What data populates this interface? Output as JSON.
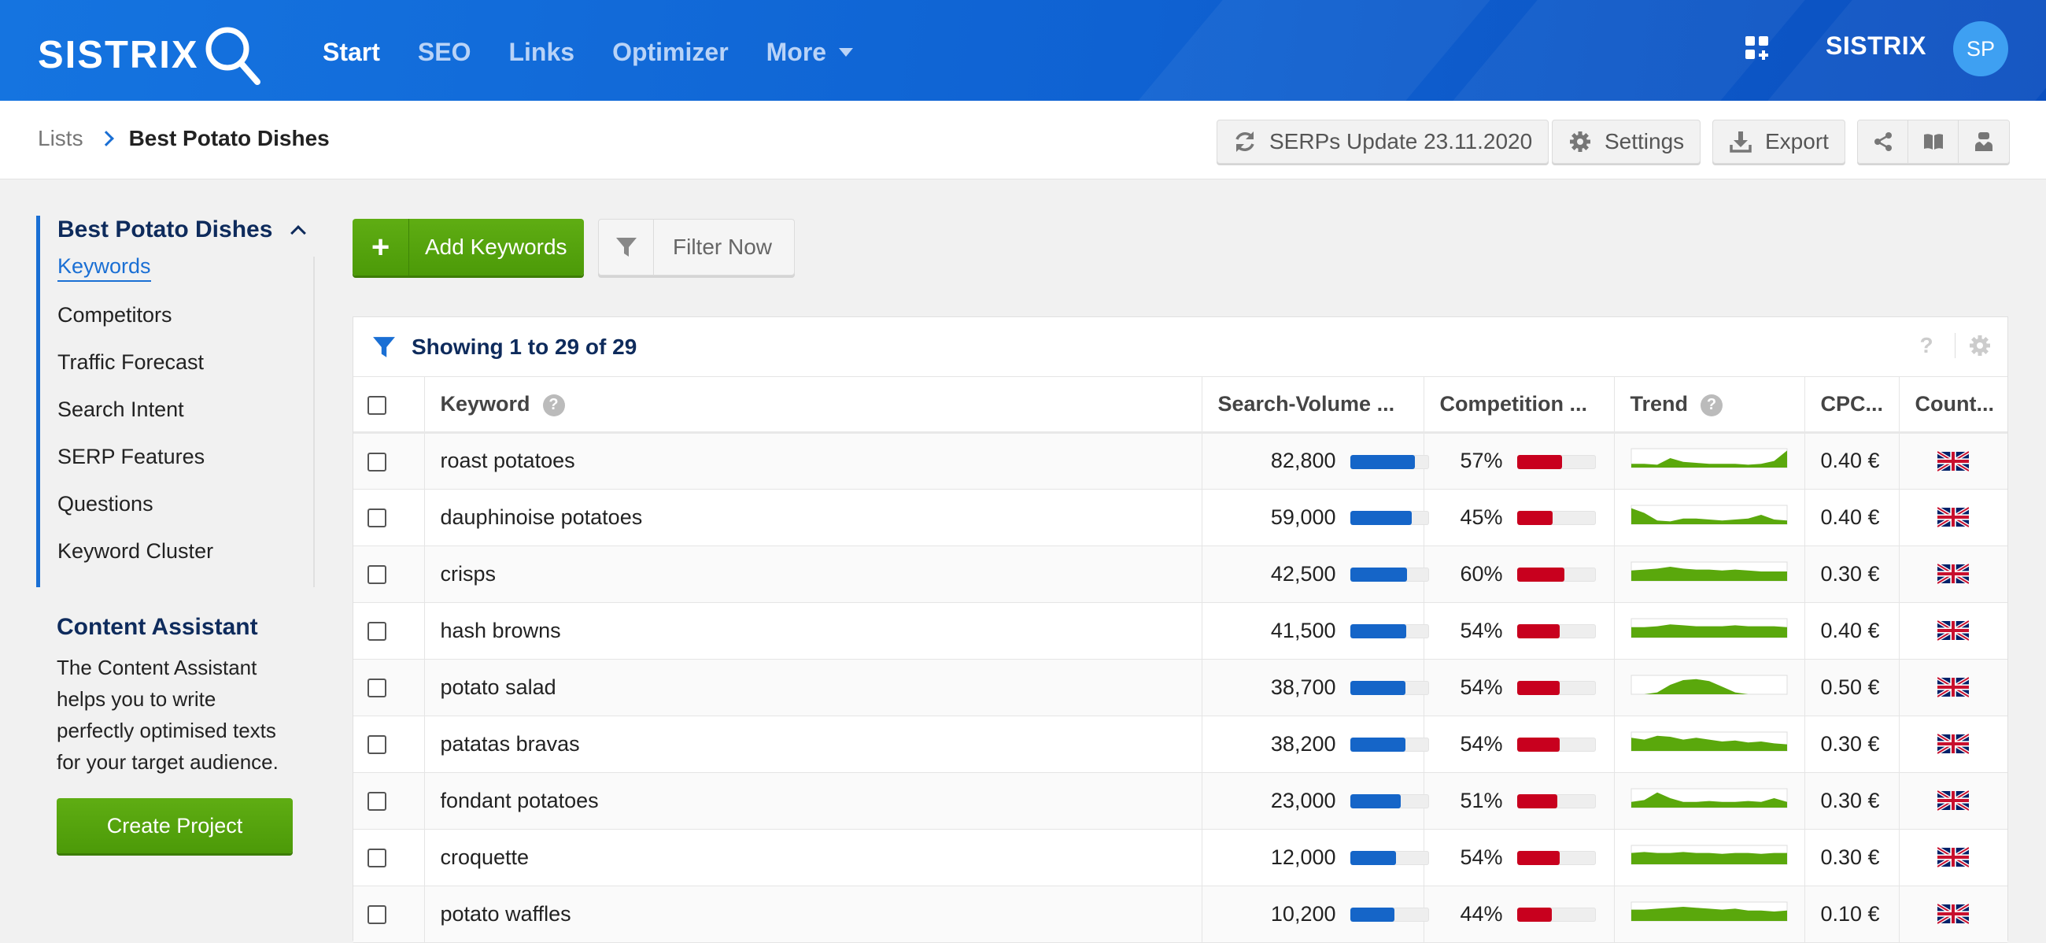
{
  "topbar": {
    "logo": "SISTRIX",
    "nav": [
      {
        "label": "Start",
        "active": true
      },
      {
        "label": "SEO",
        "active": false
      },
      {
        "label": "Links",
        "active": false
      },
      {
        "label": "Optimizer",
        "active": false
      },
      {
        "label": "More",
        "active": false,
        "dropdown": true
      }
    ],
    "apps_icon": "apps-grid-icon",
    "brand": "SISTRIX",
    "avatar": "SP"
  },
  "breadcrumb": {
    "root": "Lists",
    "current": "Best Potato Dishes"
  },
  "header_actions": {
    "serps_update": "SERPs Update 23.11.2020",
    "settings": "Settings",
    "export": "Export",
    "icons": [
      "share-icon",
      "book-icon",
      "user-tie-icon"
    ]
  },
  "sidebar": {
    "title": "Best Potato Dishes",
    "items": [
      {
        "label": "Keywords",
        "active": true
      },
      {
        "label": "Competitors",
        "active": false
      },
      {
        "label": "Traffic Forecast",
        "active": false
      },
      {
        "label": "Search Intent",
        "active": false
      },
      {
        "label": "SERP Features",
        "active": false
      },
      {
        "label": "Questions",
        "active": false
      },
      {
        "label": "Keyword Cluster",
        "active": false
      }
    ],
    "content_assistant": {
      "title": "Content Assistant",
      "text": "The Content Assistant helps you to write perfectly optimised texts for your target audience.",
      "button": "Create Project"
    }
  },
  "actions": {
    "add_keywords": "Add Keywords",
    "filter_now": "Filter Now"
  },
  "table": {
    "showing": "Showing 1 to 29 of 29",
    "help": "?",
    "columns": {
      "keyword": "Keyword",
      "search_volume": "Search-Volume ...",
      "competition": "Competition ...",
      "trend": "Trend",
      "cpc": "CPC...",
      "country": "Count..."
    },
    "colors": {
      "volume": "#1565c8",
      "competition": "#c8001e",
      "trend": "#5aa80c"
    },
    "rows": [
      {
        "keyword": "roast potatoes",
        "volume": "82,800",
        "volume_level": 0.82,
        "competition": "57%",
        "competition_level": 0.57,
        "cpc": "0.40 €",
        "trend": [
          0.2,
          0.2,
          0.15,
          0.5,
          0.3,
          0.25,
          0.2,
          0.2,
          0.2,
          0.15,
          0.2,
          0.35,
          0.9
        ]
      },
      {
        "keyword": "dauphinoise potatoes",
        "volume": "59,000",
        "volume_level": 0.78,
        "competition": "45%",
        "competition_level": 0.45,
        "cpc": "0.40 €",
        "trend": [
          0.85,
          0.6,
          0.2,
          0.15,
          0.3,
          0.3,
          0.25,
          0.2,
          0.25,
          0.3,
          0.5,
          0.25,
          0.2
        ]
      },
      {
        "keyword": "crisps",
        "volume": "42,500",
        "volume_level": 0.72,
        "competition": "60%",
        "competition_level": 0.6,
        "cpc": "0.30 €",
        "trend": [
          0.55,
          0.6,
          0.65,
          0.75,
          0.65,
          0.6,
          0.6,
          0.55,
          0.6,
          0.55,
          0.5,
          0.5,
          0.5
        ]
      },
      {
        "keyword": "hash browns",
        "volume": "41,500",
        "volume_level": 0.71,
        "competition": "54%",
        "competition_level": 0.54,
        "cpc": "0.40 €",
        "trend": [
          0.55,
          0.55,
          0.6,
          0.7,
          0.65,
          0.6,
          0.6,
          0.6,
          0.65,
          0.6,
          0.6,
          0.6,
          0.55
        ]
      },
      {
        "keyword": "potato salad",
        "volume": "38,700",
        "volume_level": 0.7,
        "competition": "54%",
        "competition_level": 0.54,
        "cpc": "0.50 €",
        "trend": [
          0.0,
          0.0,
          0.1,
          0.5,
          0.75,
          0.8,
          0.7,
          0.4,
          0.1,
          0.0,
          0.0,
          0.0,
          0.0
        ]
      },
      {
        "keyword": "patatas bravas",
        "volume": "38,200",
        "volume_level": 0.7,
        "competition": "54%",
        "competition_level": 0.54,
        "cpc": "0.30 €",
        "trend": [
          0.7,
          0.6,
          0.8,
          0.75,
          0.6,
          0.7,
          0.6,
          0.5,
          0.55,
          0.45,
          0.5,
          0.4,
          0.35
        ]
      },
      {
        "keyword": "fondant potatoes",
        "volume": "23,000",
        "volume_level": 0.64,
        "competition": "51%",
        "competition_level": 0.51,
        "cpc": "0.30 €",
        "trend": [
          0.3,
          0.4,
          0.8,
          0.5,
          0.3,
          0.3,
          0.35,
          0.3,
          0.3,
          0.35,
          0.3,
          0.5,
          0.3
        ]
      },
      {
        "keyword": "croquette",
        "volume": "12,000",
        "volume_level": 0.58,
        "competition": "54%",
        "competition_level": 0.54,
        "cpc": "0.30 €",
        "trend": [
          0.6,
          0.65,
          0.6,
          0.6,
          0.65,
          0.6,
          0.6,
          0.55,
          0.6,
          0.6,
          0.55,
          0.6,
          0.6
        ]
      },
      {
        "keyword": "potato waffles",
        "volume": "10,200",
        "volume_level": 0.56,
        "competition": "44%",
        "competition_level": 0.44,
        "cpc": "0.10 €",
        "trend": [
          0.6,
          0.6,
          0.65,
          0.7,
          0.75,
          0.7,
          0.65,
          0.6,
          0.65,
          0.55,
          0.55,
          0.5,
          0.55
        ]
      }
    ]
  }
}
